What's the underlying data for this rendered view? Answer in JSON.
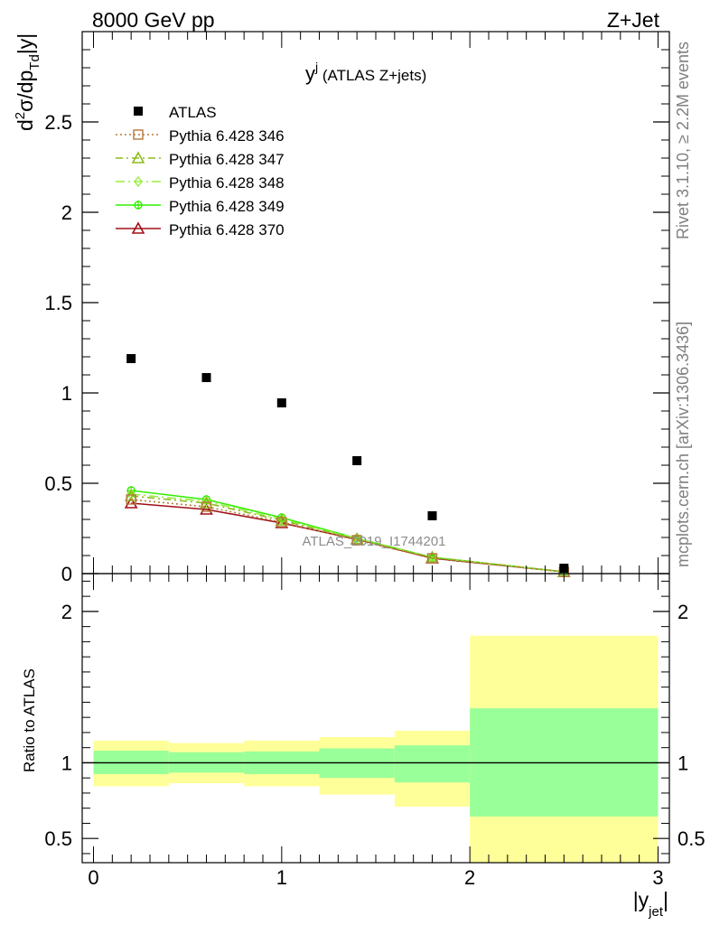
{
  "header": {
    "left": "8000 GeV pp",
    "right": "Z+Jet"
  },
  "side_text": {
    "rivet": "Rivet 3.1.10, ≥ 2.2M events",
    "mcplots": "mcplots.cern.ch [arXiv:1306.3436]"
  },
  "chart_data": [
    {
      "type": "scatter",
      "panel": "main",
      "title_main": "y",
      "title_sup": "j",
      "title_sub": " (ATLAS Z+jets)",
      "watermark": "ATLAS_2019_I1744201",
      "ylabel": {
        "a": "d",
        "b": "2",
        "c": "σ/dp",
        "d": "Td",
        "e": "|y|"
      },
      "ylim": [
        0,
        3.0
      ],
      "yticks": [
        {
          "v": 0,
          "label": "0"
        },
        {
          "v": 0.5,
          "label": "0.5"
        },
        {
          "v": 1,
          "label": "1"
        },
        {
          "v": 1.5,
          "label": "1.5"
        },
        {
          "v": 2,
          "label": "2"
        },
        {
          "v": 2.5,
          "label": "2.5"
        }
      ],
      "xlim": [
        -0.06,
        3.06
      ],
      "series": [
        {
          "name": "ATLAS",
          "marker": "square-filled",
          "color": "#000000",
          "dash": "none",
          "x": [
            0.2,
            0.6,
            1.0,
            1.4,
            1.8,
            2.5
          ],
          "y": [
            1.19,
            1.085,
            0.945,
            0.625,
            0.32,
            0.03
          ]
        },
        {
          "name": "Pythia 6.428 346",
          "marker": "square-open",
          "color": "#b5793a",
          "dash": "2,3",
          "x": [
            0.2,
            0.6,
            1.0,
            1.4,
            1.8,
            2.5
          ],
          "y": [
            0.41,
            0.37,
            0.285,
            0.185,
            0.085,
            0.01
          ]
        },
        {
          "name": "Pythia 6.428 347",
          "marker": "triangle-open",
          "color": "#8fbc1f",
          "dash": "8,4,2,4",
          "x": [
            0.2,
            0.6,
            1.0,
            1.4,
            1.8,
            2.5
          ],
          "y": [
            0.43,
            0.39,
            0.295,
            0.19,
            0.09,
            0.01
          ]
        },
        {
          "name": "Pythia 6.428 348",
          "marker": "diamond-open",
          "color": "#99ee44",
          "dash": "10,4,2,4",
          "x": [
            0.2,
            0.6,
            1.0,
            1.4,
            1.8,
            2.5
          ],
          "y": [
            0.44,
            0.4,
            0.3,
            0.195,
            0.09,
            0.01
          ]
        },
        {
          "name": "Pythia 6.428 349",
          "marker": "circle-cross",
          "color": "#33ee00",
          "dash": "none",
          "x": [
            0.2,
            0.6,
            1.0,
            1.4,
            1.8,
            2.5
          ],
          "y": [
            0.46,
            0.41,
            0.31,
            0.195,
            0.09,
            0.01
          ]
        },
        {
          "name": "Pythia 6.428 370",
          "marker": "triangle-open",
          "color": "#a01018",
          "dash": "none",
          "x": [
            0.2,
            0.6,
            1.0,
            1.4,
            1.8,
            2.5
          ],
          "y": [
            0.39,
            0.355,
            0.28,
            0.19,
            0.085,
            0.01
          ]
        }
      ]
    },
    {
      "type": "area",
      "panel": "ratio",
      "ylabel": "Ratio to ATLAS",
      "xlabel": {
        "a": "|y",
        "b": "jet",
        "c": "|"
      },
      "ylim": [
        0.34,
        2.25
      ],
      "yticks": [
        {
          "v": 0.5,
          "label": "0.5"
        },
        {
          "v": 1,
          "label": "1"
        },
        {
          "v": 2,
          "label": "2"
        }
      ],
      "xlim": [
        -0.06,
        3.06
      ],
      "xticks": [
        {
          "v": 0,
          "label": "0"
        },
        {
          "v": 1,
          "label": "1"
        },
        {
          "v": 2,
          "label": "2"
        },
        {
          "v": 3,
          "label": "3"
        }
      ],
      "reference": 1,
      "bands": [
        {
          "x0": 0.0,
          "x1": 0.4,
          "yellow": [
            0.845,
            1.147
          ],
          "green": [
            0.925,
            1.08
          ]
        },
        {
          "x0": 0.4,
          "x1": 0.8,
          "yellow": [
            0.865,
            1.13
          ],
          "green": [
            0.935,
            1.07
          ]
        },
        {
          "x0": 0.8,
          "x1": 1.2,
          "yellow": [
            0.845,
            1.147
          ],
          "green": [
            0.925,
            1.075
          ]
        },
        {
          "x0": 1.2,
          "x1": 1.6,
          "yellow": [
            0.79,
            1.17
          ],
          "green": [
            0.9,
            1.095
          ]
        },
        {
          "x0": 1.6,
          "x1": 2.0,
          "yellow": [
            0.71,
            1.212
          ],
          "green": [
            0.87,
            1.115
          ]
        },
        {
          "x0": 2.0,
          "x1": 3.0,
          "yellow": [
            0.34,
            1.84
          ],
          "green": [
            0.645,
            1.36
          ]
        }
      ],
      "colors": {
        "yellow": "#ffff99",
        "green": "#99ff99"
      }
    }
  ]
}
